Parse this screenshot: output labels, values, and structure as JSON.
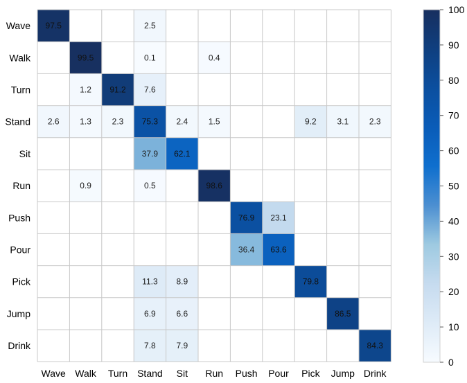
{
  "chart_data": {
    "type": "heatmap",
    "title": "",
    "xlabel": "",
    "ylabel": "",
    "rows": [
      "Wave",
      "Walk",
      "Turn",
      "Stand",
      "Sit",
      "Run",
      "Push",
      "Pour",
      "Pick",
      "Jump",
      "Drink"
    ],
    "cols": [
      "Wave",
      "Walk",
      "Turn",
      "Stand",
      "Sit",
      "Run",
      "Push",
      "Pour",
      "Pick",
      "Jump",
      "Drink"
    ],
    "values": [
      [
        97.5,
        null,
        null,
        2.5,
        null,
        null,
        null,
        null,
        null,
        null,
        null
      ],
      [
        null,
        99.5,
        null,
        0.1,
        null,
        0.4,
        null,
        null,
        null,
        null,
        null
      ],
      [
        null,
        1.2,
        91.2,
        7.6,
        null,
        null,
        null,
        null,
        null,
        null,
        null
      ],
      [
        2.6,
        1.3,
        2.3,
        75.3,
        2.4,
        1.5,
        null,
        null,
        9.2,
        3.1,
        2.3
      ],
      [
        null,
        null,
        null,
        37.9,
        62.1,
        null,
        null,
        null,
        null,
        null,
        null
      ],
      [
        null,
        0.9,
        null,
        0.5,
        null,
        98.6,
        null,
        null,
        null,
        null,
        null
      ],
      [
        null,
        null,
        null,
        null,
        null,
        null,
        76.9,
        23.1,
        null,
        null,
        null
      ],
      [
        null,
        null,
        null,
        null,
        null,
        null,
        36.4,
        63.6,
        null,
        null,
        null
      ],
      [
        null,
        null,
        null,
        11.3,
        8.9,
        null,
        null,
        null,
        79.8,
        null,
        null
      ],
      [
        null,
        null,
        null,
        6.9,
        6.6,
        null,
        null,
        null,
        null,
        86.5,
        null
      ],
      [
        null,
        null,
        null,
        7.8,
        7.9,
        null,
        null,
        null,
        null,
        null,
        84.3
      ]
    ],
    "colorbar": {
      "min": 0,
      "max": 100,
      "ticks": [
        "0",
        "10",
        "20",
        "30",
        "40",
        "50",
        "60",
        "70",
        "80",
        "90",
        "100"
      ]
    },
    "colorscale": [
      "#f7fbff",
      "#deebf7",
      "#c6dbef",
      "#9ecae1",
      "#4c8fd1",
      "#0f6fce",
      "#0a5cb8",
      "#0b4f9f",
      "#0f3f7f",
      "#172f5f"
    ],
    "grid": true,
    "legend": "colorbar-right"
  }
}
